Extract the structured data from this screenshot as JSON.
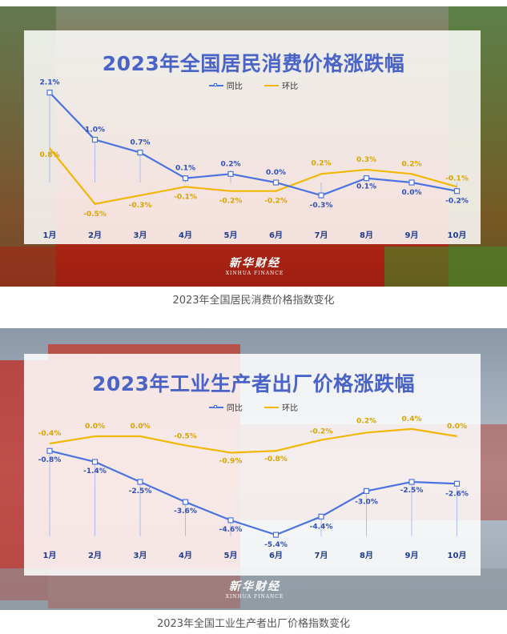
{
  "charts": [
    {
      "title": "2023年全国居民消费价格涨跌幅",
      "caption": "2023年全国居民消费价格指数变化",
      "logo": {
        "main": "新华财经",
        "sub": "XINHUA FINANCE"
      },
      "legend": [
        "同比",
        "环比"
      ],
      "colors": {
        "yoy": "#4a73e0",
        "mom": "#f2b705"
      }
    },
    {
      "title": "2023年工业生产者出厂价格涨跌幅",
      "caption": "2023年全国工业生产者出厂价格指数变化",
      "logo": {
        "main": "新华财经",
        "sub": "XINHUA FINANCE"
      },
      "legend": [
        "同比",
        "环比"
      ],
      "colors": {
        "yoy": "#4a73e0",
        "mom": "#f2b705"
      }
    }
  ],
  "chart_data": [
    {
      "type": "line",
      "title": "2023年全国居民消费价格涨跌幅",
      "categories": [
        "1月",
        "2月",
        "3月",
        "4月",
        "5月",
        "6月",
        "7月",
        "8月",
        "9月",
        "10月"
      ],
      "series": [
        {
          "name": "同比",
          "values": [
            2.1,
            1.0,
            0.7,
            0.1,
            0.2,
            0.0,
            -0.3,
            0.1,
            0.0,
            -0.2
          ],
          "labels": [
            "2.1%",
            "1.0%",
            "0.7%",
            "0.1%",
            "0.2%",
            "0.0%",
            "-0.3%",
            "0.1%",
            "0.0%",
            "-0.2%"
          ]
        },
        {
          "name": "环比",
          "values": [
            0.8,
            -0.5,
            -0.3,
            -0.1,
            -0.2,
            -0.2,
            0.2,
            0.3,
            0.2,
            -0.1
          ],
          "labels": [
            "0.8%",
            "-0.5%",
            "-0.3%",
            "-0.1%",
            "-0.2%",
            "-0.2%",
            "0.2%",
            "0.3%",
            "0.2%",
            "-0.1%"
          ]
        }
      ],
      "legend_position": "top-center",
      "grid": false
    },
    {
      "type": "line",
      "title": "2023年工业生产者出厂价格涨跌幅",
      "categories": [
        "1月",
        "2月",
        "3月",
        "4月",
        "5月",
        "6月",
        "7月",
        "8月",
        "9月",
        "10月"
      ],
      "series": [
        {
          "name": "同比",
          "values": [
            -0.8,
            -1.4,
            -2.5,
            -3.6,
            -4.6,
            -5.4,
            -4.4,
            -3.0,
            -2.5,
            -2.6
          ],
          "labels": [
            "-0.8%",
            "-1.4%",
            "-2.5%",
            "-3.6%",
            "-4.6%",
            "-5.4%",
            "-4.4%",
            "-3.0%",
            "-2.5%",
            "-2.6%"
          ]
        },
        {
          "name": "环比",
          "values": [
            -0.4,
            0.0,
            0.0,
            -0.5,
            -0.9,
            -0.8,
            -0.2,
            0.2,
            0.4,
            0.0
          ],
          "labels": [
            "-0.4%",
            "0.0%",
            "0.0%",
            "-0.5%",
            "-0.9%",
            "-0.8%",
            "-0.2%",
            "0.2%",
            "0.4%",
            "0.0%"
          ]
        }
      ],
      "legend_position": "top-center",
      "grid": false
    }
  ]
}
